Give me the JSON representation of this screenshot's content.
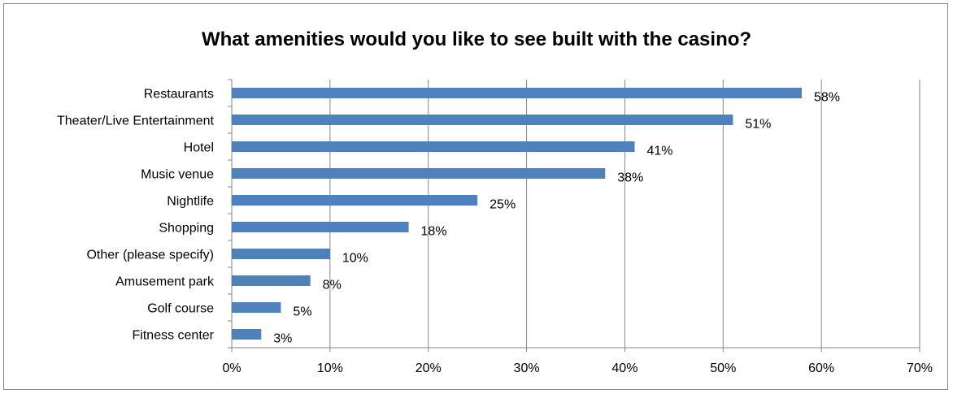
{
  "chart_data": {
    "type": "bar",
    "orientation": "horizontal",
    "title": "What amenities would you like to see built with the casino?",
    "categories": [
      "Restaurants",
      "Theater/Live Entertainment",
      "Hotel",
      "Music venue",
      "Nightlife",
      "Shopping",
      "Other (please specify)",
      "Amusement park",
      "Golf course",
      "Fitness center"
    ],
    "values": [
      58,
      51,
      41,
      38,
      25,
      18,
      10,
      8,
      5,
      3
    ],
    "data_labels": [
      "58%",
      "51%",
      "41%",
      "38%",
      "25%",
      "18%",
      "10%",
      "8%",
      "5%",
      "3%"
    ],
    "xlim": [
      0,
      70
    ],
    "x_ticks": [
      0,
      10,
      20,
      30,
      40,
      50,
      60,
      70
    ],
    "x_tick_labels": [
      "0%",
      "10%",
      "20%",
      "30%",
      "40%",
      "50%",
      "60%",
      "70%"
    ],
    "grid": "vertical",
    "legend": "none",
    "colors": {
      "bar": "#4F81BD",
      "grid": "#868686",
      "axis": "#868686"
    }
  }
}
